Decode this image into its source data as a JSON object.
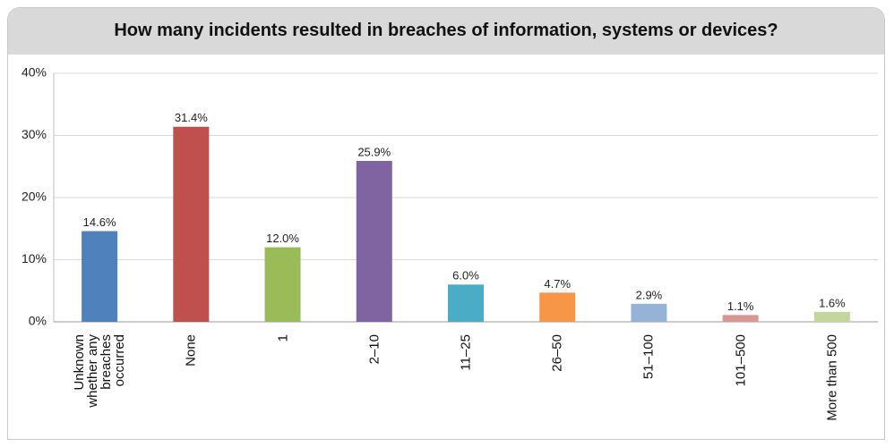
{
  "chart_data": {
    "type": "bar",
    "title": "How many incidents resulted in breaches of information, systems or devices?",
    "categories": [
      "Unknown whether any breaches occurred",
      "None",
      "1",
      "2–10",
      "11–25",
      "26–50",
      "51–100",
      "101–500",
      "More than 500"
    ],
    "values": [
      14.6,
      31.4,
      12.0,
      25.9,
      6.0,
      4.7,
      2.9,
      1.1,
      1.6
    ],
    "value_labels": [
      "14.6%",
      "31.4%",
      "12.0%",
      "25.9%",
      "6.0%",
      "4.7%",
      "2.9%",
      "1.1%",
      "1.6%"
    ],
    "colors": [
      "#4f81bd",
      "#c0504d",
      "#9bbb59",
      "#8064a2",
      "#4bacc6",
      "#f79646",
      "#95b3d7",
      "#d99694",
      "#c3d69b"
    ],
    "ylim": [
      0,
      40
    ],
    "yticks": [
      {
        "value": 0,
        "label": "0%"
      },
      {
        "value": 10,
        "label": "10%"
      },
      {
        "value": 20,
        "label": "20%"
      },
      {
        "value": 30,
        "label": "30%"
      },
      {
        "value": 40,
        "label": "40%"
      }
    ],
    "grid": true
  }
}
